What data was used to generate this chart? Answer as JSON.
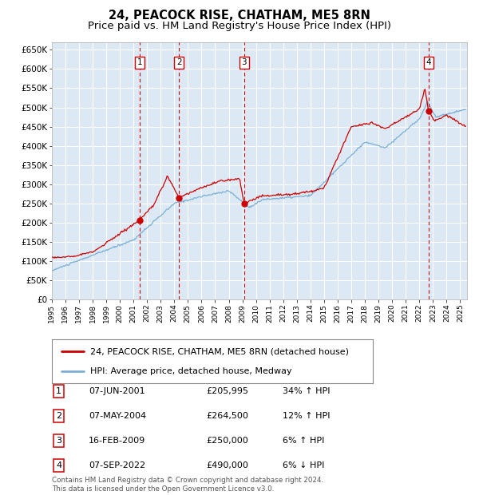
{
  "title": "24, PEACOCK RISE, CHATHAM, ME5 8RN",
  "subtitle": "Price paid vs. HM Land Registry's House Price Index (HPI)",
  "title_fontsize": 10.5,
  "subtitle_fontsize": 9.5,
  "background_color": "#dce9f5",
  "grid_color": "#ffffff",
  "ylim": [
    0,
    670000
  ],
  "yticks": [
    0,
    50000,
    100000,
    150000,
    200000,
    250000,
    300000,
    350000,
    400000,
    450000,
    500000,
    550000,
    600000,
    650000
  ],
  "sale_dates_num": [
    2001.44,
    2004.35,
    2009.12,
    2022.68
  ],
  "sale_prices": [
    205995,
    264500,
    250000,
    490000
  ],
  "sale_labels": [
    "1",
    "2",
    "3",
    "4"
  ],
  "vline_color": "#cc0000",
  "marker_color": "#cc0000",
  "hpi_line_color": "#7bafd4",
  "price_line_color": "#cc0000",
  "legend_entries": [
    "24, PEACOCK RISE, CHATHAM, ME5 8RN (detached house)",
    "HPI: Average price, detached house, Medway"
  ],
  "table_rows": [
    [
      "1",
      "07-JUN-2001",
      "£205,995",
      "34% ↑ HPI"
    ],
    [
      "2",
      "07-MAY-2004",
      "£264,500",
      "12% ↑ HPI"
    ],
    [
      "3",
      "16-FEB-2009",
      "£250,000",
      "6% ↑ HPI"
    ],
    [
      "4",
      "07-SEP-2022",
      "£490,000",
      "6% ↓ HPI"
    ]
  ],
  "footer_text": "Contains HM Land Registry data © Crown copyright and database right 2024.\nThis data is licensed under the Open Government Licence v3.0.",
  "xmin": 1995.0,
  "xmax": 2025.5
}
